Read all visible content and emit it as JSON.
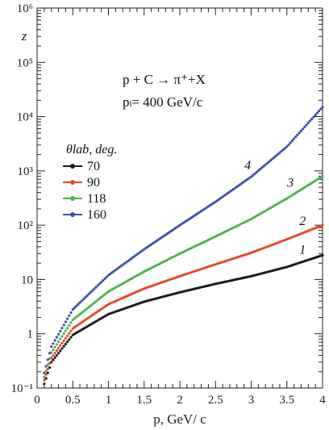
{
  "chart_data": {
    "type": "scatter",
    "title": "",
    "xlabel": "p, GeV/ c",
    "ylabel": "z",
    "yscale": "log",
    "xlim": [
      0,
      4
    ],
    "ylim": [
      0.1,
      1000000
    ],
    "xticks": [
      "0",
      "0.5",
      "1",
      "1.5",
      "2",
      "2.5",
      "3",
      "3.5",
      "4"
    ],
    "yticks": [
      "10⁻¹",
      "1",
      "10",
      "10²",
      "10³",
      "10⁴",
      "10⁵",
      "10⁶"
    ],
    "grid": false,
    "annotations": {
      "reaction_line1": "p + C → π⁺+X",
      "reaction_line2": "pₗ= 400 GeV/c"
    },
    "legend": {
      "title": "θlab, deg.",
      "placement": "left-center"
    },
    "series": [
      {
        "name": "70",
        "curve_label": "1",
        "color": "#1a1a1a",
        "points": [
          [
            0.1,
            0.12
          ],
          [
            0.2,
            0.3
          ],
          [
            0.5,
            0.95
          ],
          [
            1.0,
            2.3
          ],
          [
            1.5,
            3.9
          ],
          [
            2.0,
            5.8
          ],
          [
            2.5,
            8.3
          ],
          [
            3.0,
            11.5
          ],
          [
            3.5,
            17
          ],
          [
            4.0,
            28
          ]
        ]
      },
      {
        "name": "90",
        "curve_label": "2",
        "color": "#e8472a",
        "points": [
          [
            0.1,
            0.14
          ],
          [
            0.2,
            0.36
          ],
          [
            0.5,
            1.25
          ],
          [
            1.0,
            3.5
          ],
          [
            1.5,
            6.8
          ],
          [
            2.0,
            11.5
          ],
          [
            2.5,
            19
          ],
          [
            3.0,
            31
          ],
          [
            3.5,
            55
          ],
          [
            4.0,
            100
          ]
        ]
      },
      {
        "name": "118",
        "curve_label": "3",
        "color": "#4cb050",
        "points": [
          [
            0.1,
            0.16
          ],
          [
            0.2,
            0.45
          ],
          [
            0.5,
            1.8
          ],
          [
            1.0,
            6.0
          ],
          [
            1.5,
            14
          ],
          [
            2.0,
            30
          ],
          [
            2.5,
            62
          ],
          [
            3.0,
            130
          ],
          [
            3.5,
            310
          ],
          [
            4.0,
            800
          ]
        ]
      },
      {
        "name": "160",
        "curve_label": "4",
        "color": "#3f4fa8",
        "points": [
          [
            0.1,
            0.19
          ],
          [
            0.2,
            0.58
          ],
          [
            0.5,
            2.8
          ],
          [
            1.0,
            12
          ],
          [
            1.5,
            36
          ],
          [
            2.0,
            100
          ],
          [
            2.5,
            270
          ],
          [
            3.0,
            780
          ],
          [
            3.5,
            2800
          ],
          [
            4.0,
            15000
          ]
        ]
      }
    ]
  }
}
